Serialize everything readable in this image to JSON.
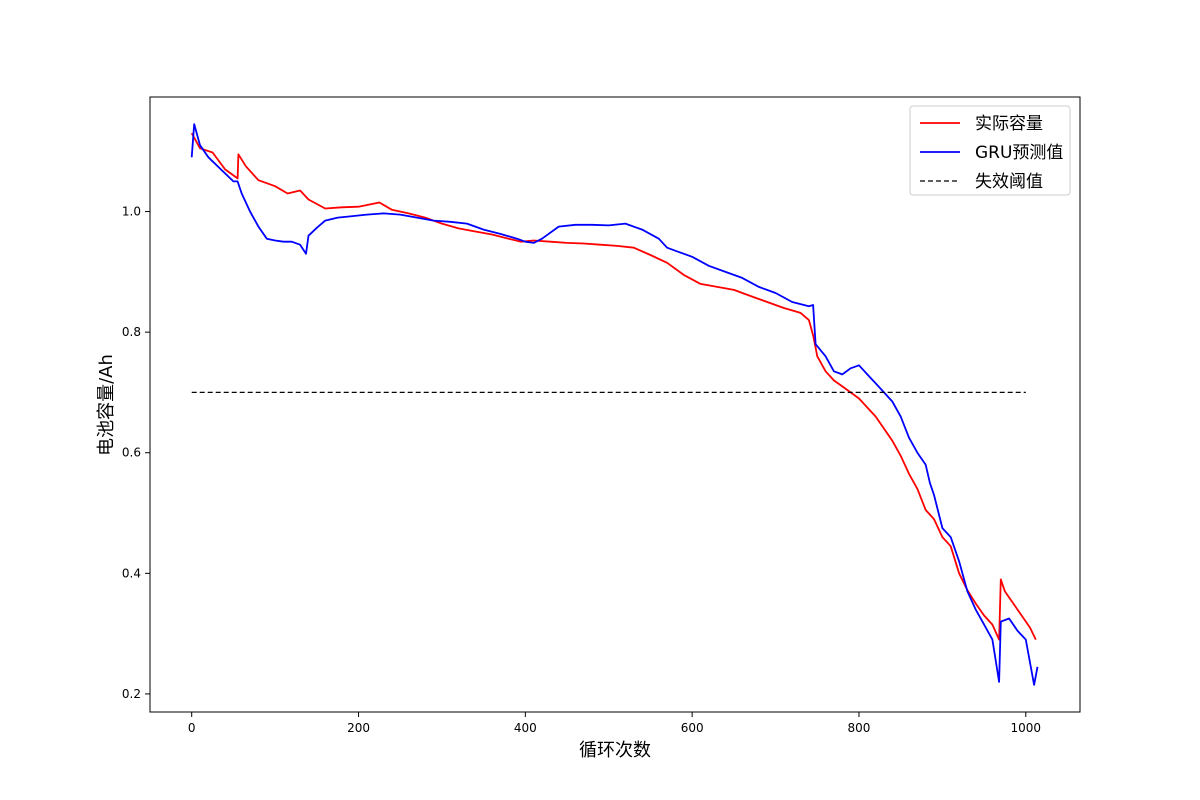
{
  "chart_data": {
    "type": "line",
    "title": "",
    "xlabel": "循环次数",
    "ylabel": "电池容量/Ah",
    "xlim": [
      -50,
      1065
    ],
    "ylim": [
      0.17,
      1.19
    ],
    "xticks": [
      0,
      200,
      400,
      600,
      800,
      1000
    ],
    "yticks": [
      0.2,
      0.4,
      0.6,
      0.8,
      1.0
    ],
    "grid": false,
    "legend_position": "top-right",
    "series": [
      {
        "name": "实际容量",
        "color": "#ff0000",
        "style": "solid",
        "points": [
          [
            0,
            1.13
          ],
          [
            10,
            1.105
          ],
          [
            25,
            1.098
          ],
          [
            40,
            1.07
          ],
          [
            55,
            1.055
          ],
          [
            56,
            1.095
          ],
          [
            65,
            1.075
          ],
          [
            80,
            1.052
          ],
          [
            100,
            1.042
          ],
          [
            115,
            1.03
          ],
          [
            130,
            1.035
          ],
          [
            140,
            1.02
          ],
          [
            160,
            1.005
          ],
          [
            180,
            1.007
          ],
          [
            200,
            1.008
          ],
          [
            225,
            1.015
          ],
          [
            240,
            1.003
          ],
          [
            260,
            0.997
          ],
          [
            280,
            0.99
          ],
          [
            300,
            0.98
          ],
          [
            320,
            0.972
          ],
          [
            340,
            0.967
          ],
          [
            360,
            0.962
          ],
          [
            380,
            0.955
          ],
          [
            395,
            0.95
          ],
          [
            410,
            0.952
          ],
          [
            430,
            0.95
          ],
          [
            450,
            0.948
          ],
          [
            470,
            0.947
          ],
          [
            490,
            0.945
          ],
          [
            510,
            0.943
          ],
          [
            530,
            0.94
          ],
          [
            550,
            0.928
          ],
          [
            570,
            0.915
          ],
          [
            590,
            0.895
          ],
          [
            610,
            0.88
          ],
          [
            630,
            0.875
          ],
          [
            650,
            0.87
          ],
          [
            670,
            0.86
          ],
          [
            690,
            0.85
          ],
          [
            710,
            0.84
          ],
          [
            730,
            0.832
          ],
          [
            740,
            0.82
          ],
          [
            745,
            0.795
          ],
          [
            750,
            0.76
          ],
          [
            760,
            0.735
          ],
          [
            770,
            0.72
          ],
          [
            780,
            0.71
          ],
          [
            790,
            0.7
          ],
          [
            800,
            0.69
          ],
          [
            810,
            0.675
          ],
          [
            820,
            0.66
          ],
          [
            830,
            0.64
          ],
          [
            840,
            0.62
          ],
          [
            850,
            0.595
          ],
          [
            860,
            0.565
          ],
          [
            870,
            0.54
          ],
          [
            880,
            0.505
          ],
          [
            890,
            0.49
          ],
          [
            900,
            0.46
          ],
          [
            910,
            0.445
          ],
          [
            920,
            0.4
          ],
          [
            930,
            0.372
          ],
          [
            940,
            0.35
          ],
          [
            950,
            0.33
          ],
          [
            960,
            0.315
          ],
          [
            968,
            0.29
          ],
          [
            970,
            0.39
          ],
          [
            975,
            0.37
          ],
          [
            985,
            0.35
          ],
          [
            995,
            0.33
          ],
          [
            1005,
            0.31
          ],
          [
            1012,
            0.29
          ]
        ]
      },
      {
        "name": "GRU预测值",
        "color": "#0000ff",
        "style": "solid",
        "points": [
          [
            0,
            1.09
          ],
          [
            3,
            1.145
          ],
          [
            10,
            1.11
          ],
          [
            20,
            1.09
          ],
          [
            35,
            1.07
          ],
          [
            50,
            1.05
          ],
          [
            55,
            1.05
          ],
          [
            60,
            1.03
          ],
          [
            70,
            1.0
          ],
          [
            80,
            0.975
          ],
          [
            90,
            0.955
          ],
          [
            100,
            0.952
          ],
          [
            110,
            0.95
          ],
          [
            120,
            0.95
          ],
          [
            130,
            0.945
          ],
          [
            137,
            0.93
          ],
          [
            140,
            0.96
          ],
          [
            150,
            0.973
          ],
          [
            160,
            0.985
          ],
          [
            175,
            0.99
          ],
          [
            190,
            0.992
          ],
          [
            210,
            0.995
          ],
          [
            230,
            0.997
          ],
          [
            250,
            0.995
          ],
          [
            270,
            0.99
          ],
          [
            290,
            0.985
          ],
          [
            310,
            0.983
          ],
          [
            330,
            0.98
          ],
          [
            350,
            0.97
          ],
          [
            370,
            0.963
          ],
          [
            390,
            0.955
          ],
          [
            400,
            0.95
          ],
          [
            410,
            0.948
          ],
          [
            420,
            0.955
          ],
          [
            440,
            0.975
          ],
          [
            460,
            0.978
          ],
          [
            480,
            0.978
          ],
          [
            500,
            0.977
          ],
          [
            520,
            0.98
          ],
          [
            540,
            0.97
          ],
          [
            560,
            0.955
          ],
          [
            570,
            0.94
          ],
          [
            580,
            0.935
          ],
          [
            600,
            0.925
          ],
          [
            620,
            0.91
          ],
          [
            640,
            0.9
          ],
          [
            660,
            0.89
          ],
          [
            680,
            0.875
          ],
          [
            700,
            0.865
          ],
          [
            720,
            0.85
          ],
          [
            740,
            0.843
          ],
          [
            745,
            0.845
          ],
          [
            748,
            0.78
          ],
          [
            760,
            0.76
          ],
          [
            770,
            0.735
          ],
          [
            780,
            0.73
          ],
          [
            790,
            0.74
          ],
          [
            800,
            0.745
          ],
          [
            810,
            0.73
          ],
          [
            820,
            0.715
          ],
          [
            830,
            0.7
          ],
          [
            840,
            0.685
          ],
          [
            850,
            0.66
          ],
          [
            860,
            0.625
          ],
          [
            870,
            0.6
          ],
          [
            880,
            0.58
          ],
          [
            885,
            0.55
          ],
          [
            890,
            0.53
          ],
          [
            900,
            0.475
          ],
          [
            910,
            0.46
          ],
          [
            920,
            0.42
          ],
          [
            930,
            0.37
          ],
          [
            940,
            0.34
          ],
          [
            950,
            0.315
          ],
          [
            960,
            0.29
          ],
          [
            968,
            0.22
          ],
          [
            970,
            0.32
          ],
          [
            980,
            0.325
          ],
          [
            990,
            0.305
          ],
          [
            1000,
            0.29
          ],
          [
            1010,
            0.215
          ],
          [
            1014,
            0.245
          ]
        ]
      },
      {
        "name": "失效阈值",
        "color": "#000000",
        "style": "dashed",
        "points": [
          [
            0,
            0.7
          ],
          [
            1000,
            0.7
          ]
        ]
      }
    ]
  }
}
